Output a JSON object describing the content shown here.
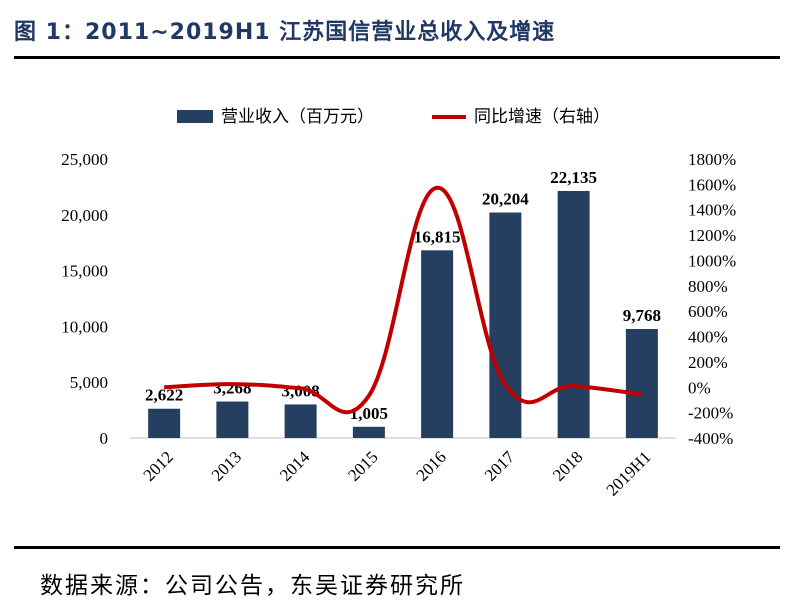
{
  "header": {
    "title": "图 1：2011~2019H1 江苏国信营业总收入及增速"
  },
  "footer": {
    "source": "数据来源：公司公告，东吴证券研究所"
  },
  "colors": {
    "bar": "#243f60",
    "line": "#c00000",
    "title": "#1f3864"
  },
  "chart_data": {
    "type": "bar",
    "categories": [
      "2012",
      "2013",
      "2014",
      "2015",
      "2016",
      "2017",
      "2018",
      "2019H1"
    ],
    "series": [
      {
        "name": "营业收入（百万元）",
        "type": "bar",
        "axis": "left",
        "values": [
          2622,
          3268,
          3008,
          1005,
          16815,
          20204,
          22135,
          9768
        ],
        "labels": [
          "2,622",
          "3,268",
          "3,008",
          "1,005",
          "16,815",
          "20,204",
          "22,135",
          "9,768"
        ]
      },
      {
        "name": "同比增速（右轴）",
        "type": "line",
        "axis": "right",
        "values": [
          0,
          25,
          -8,
          -67,
          1573,
          20,
          10,
          -56
        ]
      }
    ],
    "left_axis": {
      "min": 0,
      "max": 25000,
      "ticks": [
        "0",
        "5,000",
        "10,000",
        "15,000",
        "20,000",
        "25,000"
      ]
    },
    "right_axis": {
      "min": -400,
      "max": 1800,
      "ticks": [
        "-400%",
        "-200%",
        "0%",
        "200%",
        "400%",
        "600%",
        "800%",
        "1000%",
        "1200%",
        "1400%",
        "1600%",
        "1800%"
      ]
    },
    "legend_position": "top"
  }
}
